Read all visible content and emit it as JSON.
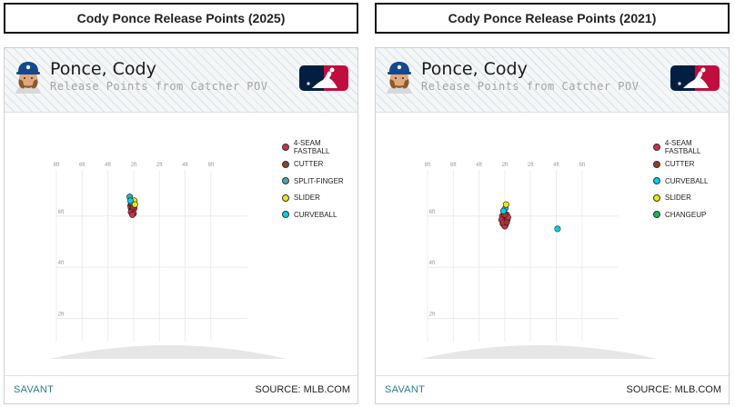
{
  "panels": [
    {
      "title": "Cody Ponce Release Points (2025)",
      "player_name": "Ponce, Cody",
      "subtitle": "Release Points from Catcher POV",
      "footer_left": "SAVANT",
      "footer_right": "SOURCE: MLB.COM",
      "icons": [
        "player-headshot-icon",
        "mlb-logo-icon"
      ]
    },
    {
      "title": "Cody Ponce Release Points (2021)",
      "player_name": "Ponce, Cody",
      "subtitle": "Release Points from Catcher POV",
      "footer_left": "SAVANT",
      "footer_right": "SOURCE: MLB.COM",
      "icons": [
        "player-headshot-icon",
        "mlb-logo-icon"
      ]
    }
  ],
  "chart_data": [
    {
      "type": "scatter",
      "x_ticks": [
        "8ft",
        "6ft",
        "4ft",
        "2ft",
        "2ft",
        "4ft",
        "6ft"
      ],
      "y_ticks": [
        "6ft",
        "4ft",
        "2ft"
      ],
      "xlim": [
        -8,
        6
      ],
      "ylim": [
        0,
        8
      ],
      "grid": true,
      "legend_position": "right",
      "series": [
        {
          "name": "4-SEAM FASTBALL",
          "color": "#d22d49",
          "points": [
            [
              -2.1,
              6.35
            ],
            [
              -2.2,
              6.3
            ],
            [
              -2.0,
              6.4
            ],
            [
              -2.15,
              6.2
            ],
            [
              -2.05,
              6.25
            ],
            [
              -2.25,
              6.4
            ],
            [
              -2.1,
              6.5
            ],
            [
              -1.95,
              6.3
            ],
            [
              -2.2,
              6.15
            ],
            [
              -2.0,
              6.1
            ],
            [
              -2.1,
              6.05
            ]
          ]
        },
        {
          "name": "CUTTER",
          "color": "#933f2c",
          "points": [
            [
              -2.15,
              6.45
            ],
            [
              -2.05,
              6.35
            ]
          ]
        },
        {
          "name": "SPLIT-FINGER",
          "color": "#3bacac",
          "points": [
            [
              -2.3,
              6.75
            ],
            [
              -2.2,
              6.55
            ]
          ]
        },
        {
          "name": "SLIDER",
          "color": "#eee716",
          "points": [
            [
              -1.95,
              6.6
            ],
            [
              -1.9,
              6.45
            ]
          ]
        },
        {
          "name": "CURVEBALL",
          "color": "#00d1ed",
          "points": [
            [
              -2.25,
              6.6
            ]
          ]
        }
      ]
    },
    {
      "type": "scatter",
      "x_ticks": [
        "8ft",
        "6ft",
        "4ft",
        "2ft",
        "2ft",
        "4ft",
        "6ft"
      ],
      "y_ticks": [
        "6ft",
        "4ft",
        "2ft"
      ],
      "xlim": [
        -8,
        6
      ],
      "ylim": [
        0,
        8
      ],
      "grid": true,
      "legend_position": "right",
      "series": [
        {
          "name": "4-SEAM FASTBALL",
          "color": "#d22d49",
          "points": [
            [
              -2.1,
              5.9
            ],
            [
              -2.0,
              5.8
            ],
            [
              -1.9,
              5.95
            ],
            [
              -2.2,
              6.0
            ],
            [
              -1.8,
              5.85
            ],
            [
              -2.15,
              5.7
            ],
            [
              -1.95,
              5.65
            ],
            [
              -1.85,
              6.05
            ],
            [
              -2.05,
              6.1
            ],
            [
              -2.25,
              5.85
            ],
            [
              -1.75,
              5.95
            ],
            [
              -2.0,
              5.6
            ],
            [
              -2.1,
              5.75
            ]
          ]
        },
        {
          "name": "CUTTER",
          "color": "#933f2c",
          "points": [
            [
              -2.0,
              6.05
            ],
            [
              -1.85,
              5.75
            ]
          ]
        },
        {
          "name": "CURVEBALL",
          "color": "#00d1ed",
          "points": [
            [
              -1.95,
              6.3
            ],
            [
              -2.1,
              6.2
            ],
            [
              2.1,
              5.5
            ]
          ]
        },
        {
          "name": "SLIDER",
          "color": "#eee716",
          "points": [
            [
              -1.9,
              6.45
            ]
          ]
        },
        {
          "name": "CHANGEUP",
          "color": "#1db053",
          "points": []
        }
      ]
    }
  ]
}
